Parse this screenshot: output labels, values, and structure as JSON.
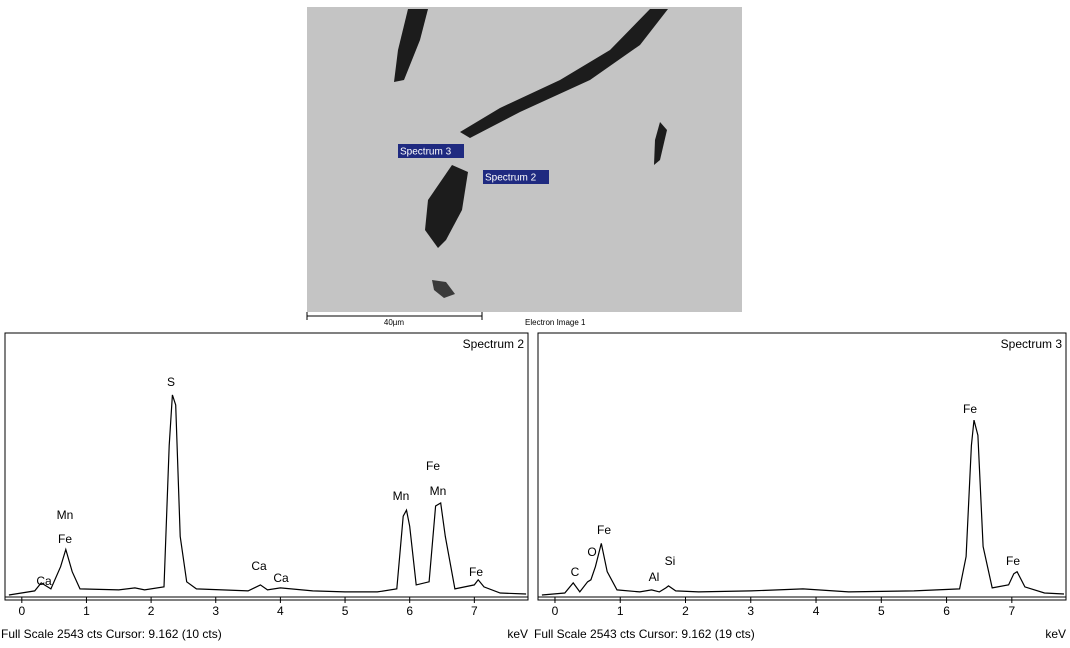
{
  "image": {
    "labels": [
      "Spectrum 3",
      "Spectrum 2"
    ],
    "scale_bar": "40µm",
    "caption": "Electron Image 1"
  },
  "chart_data": [
    {
      "type": "line",
      "title": "Spectrum 2",
      "x_label": "keV",
      "footer": "Full Scale 2543 cts Cursor: 9.162  (10 cts)",
      "annotations": [
        "Ca",
        "Mn",
        "Fe",
        "S",
        "Ca",
        "Ca",
        "Mn",
        "Fe",
        "Mn",
        "Fe"
      ],
      "xlim": [
        -0.26,
        7.83
      ],
      "ylim": [
        0,
        2543
      ],
      "xticks": [
        0,
        1,
        2,
        3,
        4,
        5,
        6,
        7
      ],
      "color": "#000000",
      "x": [
        -0.2,
        0.2,
        0.3,
        0.45,
        0.6,
        0.68,
        0.78,
        0.9,
        1.5,
        1.75,
        1.9,
        2.2,
        2.28,
        2.33,
        2.38,
        2.45,
        2.55,
        2.7,
        3.5,
        3.69,
        3.8,
        4.0,
        4.5,
        5.0,
        5.5,
        5.8,
        5.9,
        5.95,
        6.0,
        6.1,
        6.3,
        6.4,
        6.48,
        6.55,
        6.7,
        7.0,
        7.06,
        7.15,
        7.4,
        7.8
      ],
      "values": [
        20,
        60,
        140,
        80,
        300,
        470,
        250,
        80,
        70,
        90,
        70,
        100,
        1500,
        2000,
        1900,
        600,
        150,
        80,
        60,
        120,
        70,
        90,
        60,
        50,
        50,
        80,
        800,
        860,
        700,
        120,
        150,
        900,
        930,
        600,
        80,
        120,
        170,
        100,
        40,
        30
      ]
    },
    {
      "type": "line",
      "title": "Spectrum 3",
      "x_label": "keV",
      "footer": "Full Scale 2543 cts Cursor: 9.162  (19 cts)",
      "annotations": [
        "C",
        "O",
        "Fe",
        "Al",
        "Si",
        "Fe",
        "Fe"
      ],
      "xlim": [
        -0.26,
        7.83
      ],
      "ylim": [
        0,
        2543
      ],
      "xticks": [
        0,
        1,
        2,
        3,
        4,
        5,
        6,
        7
      ],
      "color": "#000000",
      "x": [
        -0.2,
        0.15,
        0.28,
        0.38,
        0.5,
        0.55,
        0.62,
        0.71,
        0.8,
        0.95,
        1.3,
        1.48,
        1.6,
        1.7,
        1.74,
        1.85,
        2.2,
        3.0,
        3.8,
        4.5,
        5.5,
        6.2,
        6.3,
        6.38,
        6.42,
        6.48,
        6.56,
        6.7,
        6.95,
        7.03,
        7.08,
        7.2,
        7.5,
        7.8
      ],
      "values": [
        20,
        40,
        140,
        50,
        150,
        170,
        300,
        530,
        250,
        70,
        50,
        70,
        50,
        90,
        110,
        60,
        50,
        60,
        80,
        50,
        60,
        80,
        400,
        1500,
        1750,
        1600,
        500,
        90,
        120,
        230,
        250,
        100,
        40,
        30
      ]
    }
  ]
}
